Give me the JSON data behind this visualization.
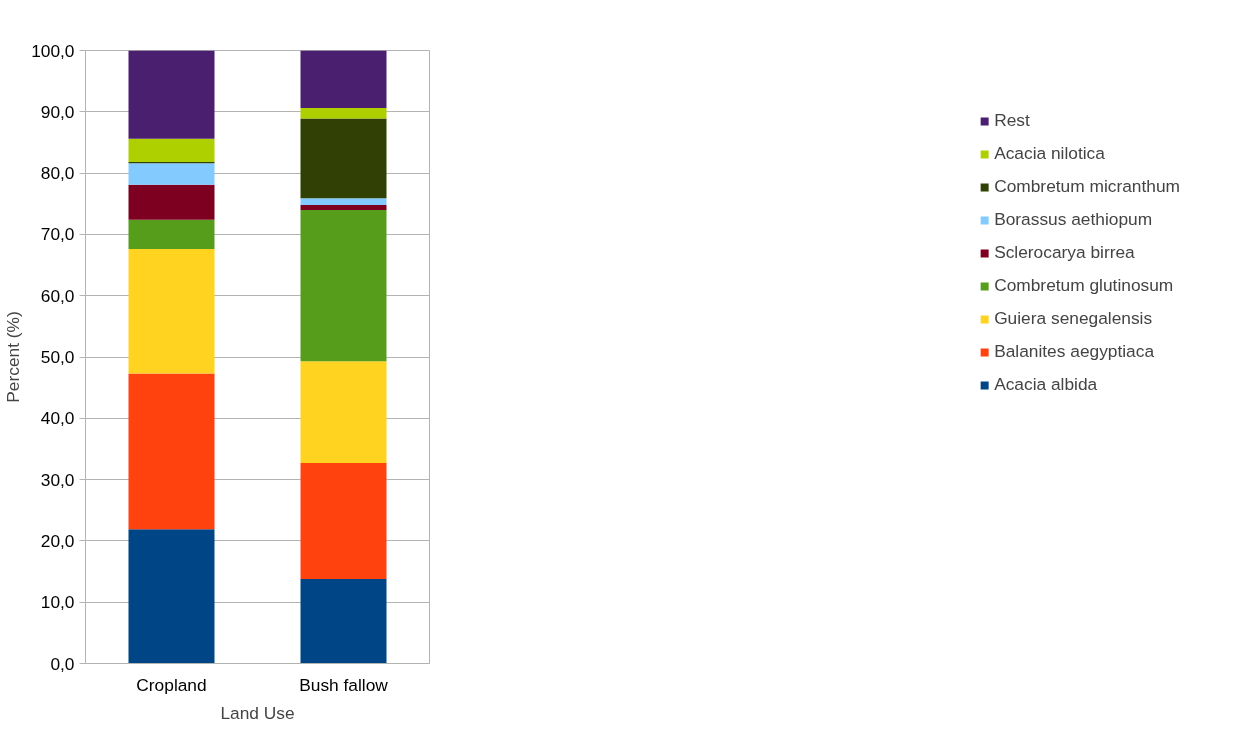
{
  "chart_data": {
    "type": "bar",
    "stacked": true,
    "xlabel": "Land Use",
    "ylabel": "Percent (%)",
    "categories": [
      "Cropland",
      "Bush fallow"
    ],
    "series": [
      {
        "name": "Acacia albida",
        "color": "#004586",
        "values": [
          21.9,
          13.8
        ]
      },
      {
        "name": "Balanites aegyptiaca",
        "color": "#ff420e",
        "values": [
          25.4,
          18.9
        ]
      },
      {
        "name": "Guiera senegalensis",
        "color": "#ffd320",
        "values": [
          20.3,
          16.6
        ]
      },
      {
        "name": "Combretum glutinosum",
        "color": "#579d1c",
        "values": [
          4.8,
          24.7
        ]
      },
      {
        "name": "Sclerocarya birrea",
        "color": "#7e0021",
        "values": [
          5.7,
          0.8
        ]
      },
      {
        "name": "Borassus aethiopum",
        "color": "#83caff",
        "values": [
          3.5,
          1.1
        ]
      },
      {
        "name": "Combretum micranthum",
        "color": "#314004",
        "values": [
          0.2,
          13.0
        ]
      },
      {
        "name": "Acacia nilotica",
        "color": "#aecf00",
        "values": [
          3.8,
          1.7
        ]
      },
      {
        "name": "Rest",
        "color": "#4b1f6f",
        "values": [
          14.4,
          9.4
        ]
      }
    ],
    "ylim": [
      0,
      100
    ],
    "yticks": [
      {
        "value": 0,
        "label": "0,0"
      },
      {
        "value": 10,
        "label": "10,0"
      },
      {
        "value": 20,
        "label": "20,0"
      },
      {
        "value": 30,
        "label": "30,0"
      },
      {
        "value": 40,
        "label": "40,0"
      },
      {
        "value": 50,
        "label": "50,0"
      },
      {
        "value": 60,
        "label": "60,0"
      },
      {
        "value": 70,
        "label": "70,0"
      },
      {
        "value": 80,
        "label": "80,0"
      },
      {
        "value": 90,
        "label": "90,0"
      },
      {
        "value": 100,
        "label": "100,0"
      }
    ],
    "grid": "y",
    "legend": "right"
  }
}
